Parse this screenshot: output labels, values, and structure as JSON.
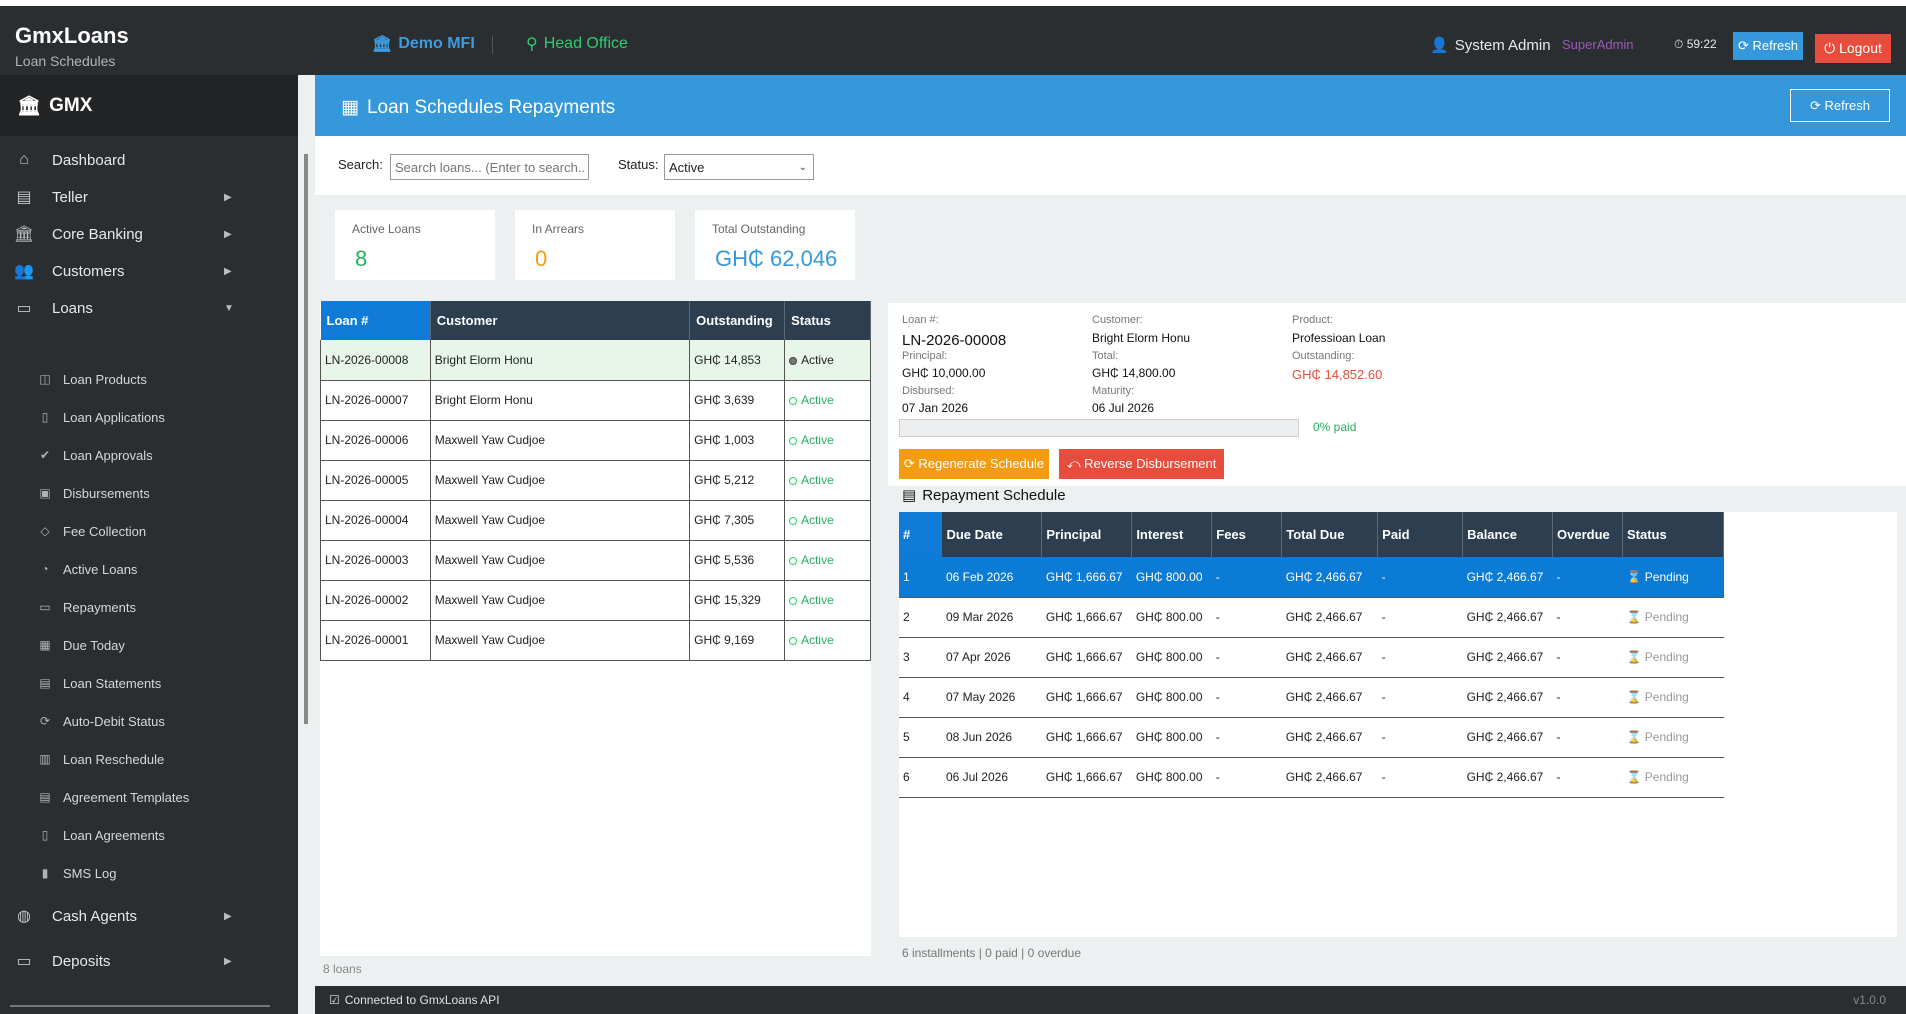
{
  "app": {
    "name": "GmxLoans",
    "subtitle": "Loan Schedules"
  },
  "header": {
    "org": "Demo MFI",
    "branch": "Head Office",
    "user": "System Admin",
    "role": "SuperAdmin",
    "timer": "59:22",
    "refresh_label": "Refresh",
    "logout_label": "Logout"
  },
  "sidebar": {
    "brand": "GMX",
    "items": [
      {
        "label": "Dashboard"
      },
      {
        "label": "Teller"
      },
      {
        "label": "Core Banking"
      },
      {
        "label": "Customers"
      },
      {
        "label": "Loans"
      },
      {
        "label": "Cash Agents"
      },
      {
        "label": "Deposits"
      }
    ],
    "loans_sub": [
      {
        "label": "Loan Products"
      },
      {
        "label": "Loan Applications"
      },
      {
        "label": "Loan Approvals"
      },
      {
        "label": "Disbursements"
      },
      {
        "label": "Fee Collection"
      },
      {
        "label": "Active Loans"
      },
      {
        "label": "Repayments"
      },
      {
        "label": "Due Today"
      },
      {
        "label": "Loan Statements"
      },
      {
        "label": "Auto-Debit Status"
      },
      {
        "label": "Loan Reschedule"
      },
      {
        "label": "Agreement Templates"
      },
      {
        "label": "Loan Agreements"
      },
      {
        "label": "SMS Log"
      }
    ]
  },
  "page": {
    "title": "Loan Schedules  Repayments",
    "refresh_label": "Refresh"
  },
  "toolbar": {
    "search_label": "Search:",
    "search_placeholder": "Search loans... (Enter to search...",
    "status_label": "Status:",
    "status_value": "Active"
  },
  "stats": {
    "active_loans": {
      "label": "Active Loans",
      "value": "8"
    },
    "in_arrears": {
      "label": "In Arrears",
      "value": "0"
    },
    "total_outstanding": {
      "label": "Total Outstanding",
      "value": "GH₵ 62,046"
    }
  },
  "loans_table": {
    "headers": [
      "Loan #",
      "Customer",
      "Outstanding",
      "Status"
    ],
    "rows": [
      {
        "loan": "LN-2026-00008",
        "customer": "Bright Elorm Honu",
        "outstanding": "GH₵ 14,853",
        "status": "Active"
      },
      {
        "loan": "LN-2026-00007",
        "customer": "Bright Elorm Honu",
        "outstanding": "GH₵ 3,639",
        "status": "Active"
      },
      {
        "loan": "LN-2026-00006",
        "customer": "Maxwell Yaw Cudjoe",
        "outstanding": "GH₵ 1,003",
        "status": "Active"
      },
      {
        "loan": "LN-2026-00005",
        "customer": "Maxwell Yaw Cudjoe",
        "outstanding": "GH₵ 5,212",
        "status": "Active"
      },
      {
        "loan": "LN-2026-00004",
        "customer": "Maxwell Yaw Cudjoe",
        "outstanding": "GH₵ 7,305",
        "status": "Active"
      },
      {
        "loan": "LN-2026-00003",
        "customer": "Maxwell Yaw Cudjoe",
        "outstanding": "GH₵ 5,536",
        "status": "Active"
      },
      {
        "loan": "LN-2026-00002",
        "customer": "Maxwell Yaw Cudjoe",
        "outstanding": "GH₵ 15,329",
        "status": "Active"
      },
      {
        "loan": "LN-2026-00001",
        "customer": "Maxwell Yaw Cudjoe",
        "outstanding": "GH₵ 9,169",
        "status": "Active"
      }
    ],
    "count": "8 loans"
  },
  "details": {
    "loan_label": "Loan #:",
    "loan": "LN-2026-00008",
    "customer_label": "Customer:",
    "customer": "Bright Elorm Honu",
    "product_label": "Product:",
    "product": "Professioan Loan",
    "principal_label": "Principal:",
    "principal": "GH₵ 10,000.00",
    "total_label": "Total:",
    "total": "GH₵ 14,800.00",
    "outstanding_label": "Outstanding:",
    "outstanding": "GH₵ 14,852.60",
    "disbursed_label": "Disbursed:",
    "disbursed": "07 Jan 2026",
    "maturity_label": "Maturity:",
    "maturity": "06 Jul 2026",
    "progress_text": "0% paid",
    "progress_fraction": 0,
    "regen_label": "Regenerate Schedule",
    "reverse_label": "Reverse Disbursement"
  },
  "schedule": {
    "title": "Repayment Schedule",
    "headers": [
      "#",
      "Due Date",
      "Principal",
      "Interest",
      "Fees",
      "Total Due",
      "Paid",
      "Balance",
      "Overdue",
      "Status"
    ],
    "rows": [
      {
        "n": "1",
        "due": "06 Feb 2026",
        "principal": "GH₵ 1,666.67",
        "interest": "GH₵ 800.00",
        "fees": "-",
        "total": "GH₵ 2,466.67",
        "paid": "-",
        "balance": "GH₵ 2,466.67",
        "overdue": "-",
        "status": "Pending"
      },
      {
        "n": "2",
        "due": "09 Mar 2026",
        "principal": "GH₵ 1,666.67",
        "interest": "GH₵ 800.00",
        "fees": "-",
        "total": "GH₵ 2,466.67",
        "paid": "-",
        "balance": "GH₵ 2,466.67",
        "overdue": "-",
        "status": "Pending"
      },
      {
        "n": "3",
        "due": "07 Apr 2026",
        "principal": "GH₵ 1,666.67",
        "interest": "GH₵ 800.00",
        "fees": "-",
        "total": "GH₵ 2,466.67",
        "paid": "-",
        "balance": "GH₵ 2,466.67",
        "overdue": "-",
        "status": "Pending"
      },
      {
        "n": "4",
        "due": "07 May 2026",
        "principal": "GH₵ 1,666.67",
        "interest": "GH₵ 800.00",
        "fees": "-",
        "total": "GH₵ 2,466.67",
        "paid": "-",
        "balance": "GH₵ 2,466.67",
        "overdue": "-",
        "status": "Pending"
      },
      {
        "n": "5",
        "due": "08 Jun 2026",
        "principal": "GH₵ 1,666.67",
        "interest": "GH₵ 800.00",
        "fees": "-",
        "total": "GH₵ 2,466.67",
        "paid": "-",
        "balance": "GH₵ 2,466.67",
        "overdue": "-",
        "status": "Pending"
      },
      {
        "n": "6",
        "due": "06 Jul 2026",
        "principal": "GH₵ 1,666.67",
        "interest": "GH₵ 800.00",
        "fees": "-",
        "total": "GH₵ 2,466.67",
        "paid": "-",
        "balance": "GH₵ 2,466.67",
        "overdue": "-",
        "status": "Pending"
      }
    ],
    "footer": "6 installments | 0 paid | 0 overdue"
  },
  "statusbar": {
    "connection": "Connected to GmxLoans API",
    "version": "v1.0.0"
  },
  "colors": {
    "accent": "#3498db",
    "success": "#27ae60",
    "warning": "#f39c12",
    "danger": "#e74c3c",
    "dark": "#2b2e31",
    "header_row": "#2d3e50"
  }
}
